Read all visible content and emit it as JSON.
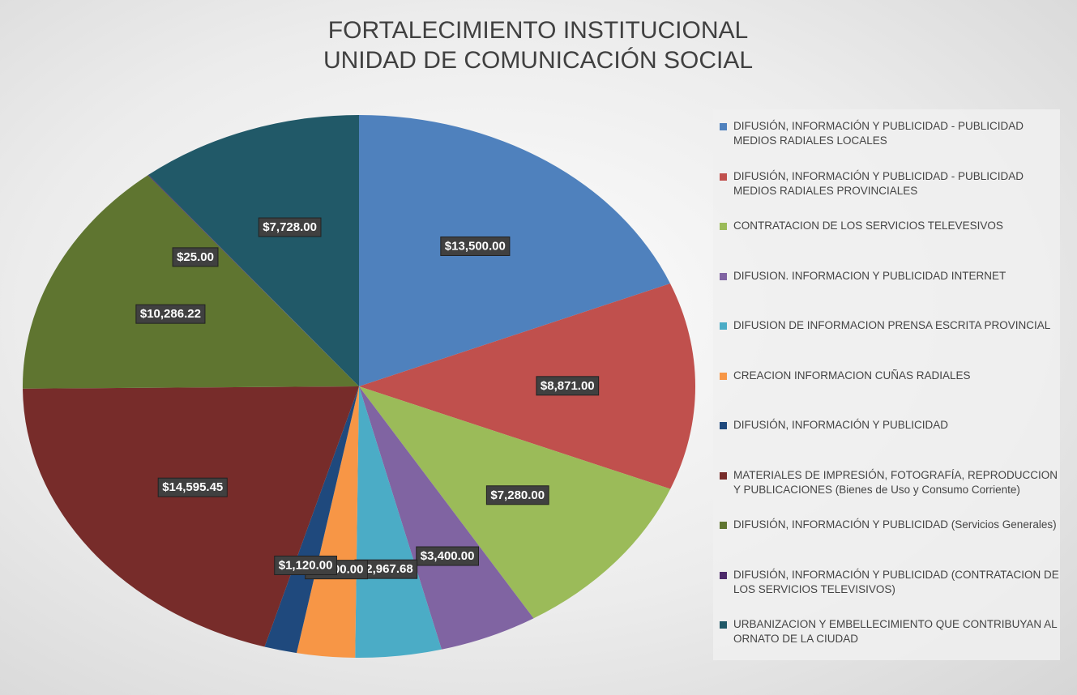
{
  "chart_data": {
    "type": "pie",
    "title": [
      "FORTALECIMIENTO INSTITUCIONAL",
      "UNIDAD DE COMUNICACIÓN SOCIAL"
    ],
    "categories": [
      "DIFUSIÓN, INFORMACIÓN Y PUBLICIDAD - PUBLICIDAD MEDIOS RADIALES LOCALES",
      "DIFUSIÓN, INFORMACIÓN Y PUBLICIDAD - PUBLICIDAD MEDIOS RADIALES PROVINCIALES",
      "CONTRATACION DE LOS SERVICIOS TELEVESIVOS",
      "DIFUSION. INFORMACION Y PUBLICIDAD INTERNET",
      "DIFUSION DE INFORMACION PRENSA ESCRITA PROVINCIAL",
      "CREACION INFORMACION CUÑAS RADIALES",
      "DIFUSIÓN, INFORMACIÓN Y PUBLICIDAD",
      "MATERIALES DE IMPRESIÓN, FOTOGRAFÍA, REPRODUCCION Y PUBLICACIONES (Bienes de Uso y Consumo Corriente)",
      "DIFUSIÓN, INFORMACIÓN Y PUBLICIDAD (Servicios Generales)",
      "DIFUSIÓN, INFORMACIÓN Y PUBLICIDAD (CONTRATACION DE LOS SERVICIOS TELEVISIVOS)",
      "URBANIZACION Y EMBELLECIMIENTO QUE CONTRIBUYAN AL ORNATO DE LA CIUDAD"
    ],
    "values": [
      13500,
      8871,
      7280,
      3400,
      2967.68,
      2000,
      1120,
      14595.45,
      10286.22,
      25,
      7728
    ],
    "value_labels": [
      "$13,500.00",
      "$8,871.00",
      "$7,280.00",
      "$3,400.00",
      "$2,967.68",
      "$2,000.00",
      "$1,120.00",
      "$14,595.45",
      "$10,286.22",
      "$25.00",
      "$7,728.00"
    ],
    "colors": [
      "#4f81bd",
      "#c0504d",
      "#9bbb59",
      "#8064a2",
      "#4bacc6",
      "#f79646",
      "#1f497d",
      "#772c2a",
      "#5f7530",
      "#4d2a6b",
      "#215968"
    ],
    "legend": "right"
  }
}
